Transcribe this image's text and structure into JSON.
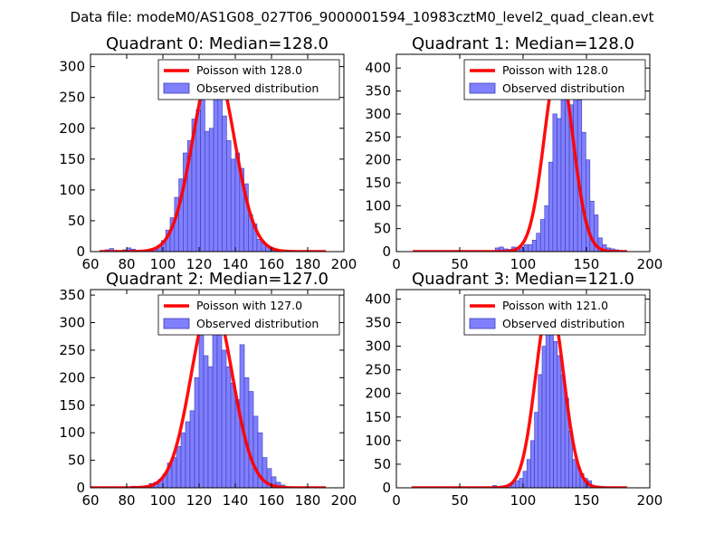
{
  "figure": {
    "suptitle": "Data file: modeM0/AS1G08_027T06_9000001594_10983cztM0_level2_quad_clean.evt"
  },
  "colors": {
    "poisson_line": "#ff0000",
    "hist_fill": "#8080ff",
    "hist_edge": "#3b3bb8"
  },
  "chart_data": [
    {
      "type": "bar",
      "title": "Quadrant 0: Median=128.0",
      "legend": [
        "Poisson with 128.0",
        "Observed distribution"
      ],
      "legend_position": "top-right",
      "xlim": [
        60,
        200
      ],
      "ylim": [
        0,
        320
      ],
      "xticks": [
        60,
        80,
        100,
        120,
        140,
        160,
        180,
        200
      ],
      "yticks": [
        0,
        50,
        100,
        150,
        200,
        250,
        300
      ],
      "poisson_mean": 128.0,
      "poisson_peak": 307,
      "poisson_x": [
        65,
        190
      ],
      "bin_width": 2.4,
      "bins_x": [
        68,
        70.4,
        72.8,
        75.2,
        77.6,
        80,
        82.4,
        84.8,
        87.2,
        89.6,
        92,
        94.4,
        96.8,
        99.2,
        101.6,
        104,
        106.4,
        108.8,
        111.2,
        113.6,
        116,
        118.4,
        120.8,
        123.2,
        125.6,
        128,
        130.4,
        132.8,
        135.2,
        137.6,
        140,
        142.4,
        144.8,
        147.2,
        149.6,
        152,
        154.4,
        156.8,
        159.2,
        161.6
      ],
      "values": [
        3,
        5,
        2,
        1,
        3,
        6,
        4,
        2,
        1,
        2,
        3,
        5,
        10,
        18,
        35,
        55,
        88,
        118,
        160,
        180,
        215,
        230,
        295,
        195,
        200,
        260,
        290,
        220,
        180,
        150,
        160,
        135,
        110,
        60,
        45,
        20,
        15,
        8,
        5,
        4
      ]
    },
    {
      "type": "bar",
      "title": "Quadrant 1: Median=128.0",
      "legend": [
        "Poisson with 128.0",
        "Observed distribution"
      ],
      "legend_position": "top-right",
      "xlim": [
        0,
        200
      ],
      "ylim": [
        0,
        430
      ],
      "xticks": [
        0,
        50,
        100,
        150,
        200
      ],
      "yticks": [
        0,
        50,
        100,
        150,
        200,
        250,
        300,
        350,
        400
      ],
      "poisson_mean": 128.0,
      "poisson_peak": 410,
      "poisson_x": [
        13,
        182
      ],
      "bin_width": 3.25,
      "bins_x": [
        78,
        81.25,
        84.5,
        87.75,
        91,
        94.25,
        97.5,
        100.75,
        104,
        107.25,
        110.5,
        113.75,
        117,
        120.25,
        123.5,
        126.75,
        130,
        133.25,
        136.5,
        139.75,
        143,
        146.25,
        149.5,
        152.75,
        156,
        159.25,
        162.5,
        165.75,
        169,
        172.25,
        175.5
      ],
      "values": [
        8,
        10,
        6,
        5,
        10,
        5,
        10,
        15,
        15,
        25,
        40,
        70,
        100,
        195,
        300,
        290,
        395,
        370,
        320,
        400,
        330,
        260,
        200,
        110,
        80,
        30,
        15,
        8,
        6,
        4,
        2
      ]
    },
    {
      "type": "bar",
      "title": "Quadrant 2: Median=127.0",
      "legend": [
        "Poisson with 127.0",
        "Observed distribution"
      ],
      "legend_position": "top-right",
      "xlim": [
        60,
        200
      ],
      "ylim": [
        0,
        360
      ],
      "xticks": [
        60,
        80,
        100,
        120,
        140,
        160,
        180,
        200
      ],
      "yticks": [
        0,
        50,
        100,
        150,
        200,
        250,
        300,
        350
      ],
      "poisson_mean": 127.0,
      "poisson_peak": 342,
      "poisson_x": [
        60,
        190
      ],
      "bin_width": 2.5,
      "bins_x": [
        82.5,
        85,
        87.5,
        90,
        92.5,
        95,
        97.5,
        100,
        102.5,
        105,
        107.5,
        110,
        112.5,
        115,
        117.5,
        120,
        122.5,
        125,
        127.5,
        130,
        132.5,
        135,
        137.5,
        140,
        142.5,
        145,
        147.5,
        150,
        152.5,
        155,
        157.5,
        160,
        162.5,
        165
      ],
      "values": [
        3,
        2,
        2,
        3,
        8,
        10,
        15,
        25,
        45,
        55,
        75,
        100,
        120,
        140,
        200,
        310,
        240,
        220,
        280,
        335,
        250,
        220,
        190,
        160,
        260,
        200,
        175,
        130,
        100,
        55,
        35,
        20,
        10,
        5
      ]
    },
    {
      "type": "bar",
      "title": "Quadrant 3: Median=121.0",
      "legend": [
        "Poisson with 121.0",
        "Observed distribution"
      ],
      "legend_position": "top-right",
      "xlim": [
        0,
        200
      ],
      "ylim": [
        0,
        420
      ],
      "xticks": [
        0,
        50,
        100,
        150,
        200
      ],
      "yticks": [
        0,
        50,
        100,
        150,
        200,
        250,
        300,
        350,
        400
      ],
      "poisson_mean": 121.0,
      "poisson_peak": 395,
      "poisson_x": [
        12,
        182
      ],
      "bin_width": 3.0,
      "bins_x": [
        76,
        79,
        82,
        85,
        88,
        91,
        94,
        97,
        100,
        103,
        106,
        109,
        112,
        115,
        118,
        121,
        124,
        127,
        130,
        133,
        136,
        139,
        142,
        145,
        148,
        151,
        154,
        157,
        160,
        163,
        166
      ],
      "values": [
        5,
        3,
        4,
        5,
        8,
        10,
        15,
        20,
        35,
        60,
        100,
        160,
        240,
        300,
        395,
        370,
        310,
        280,
        240,
        190,
        120,
        60,
        45,
        30,
        20,
        15,
        5,
        4,
        3,
        2,
        1
      ]
    }
  ]
}
